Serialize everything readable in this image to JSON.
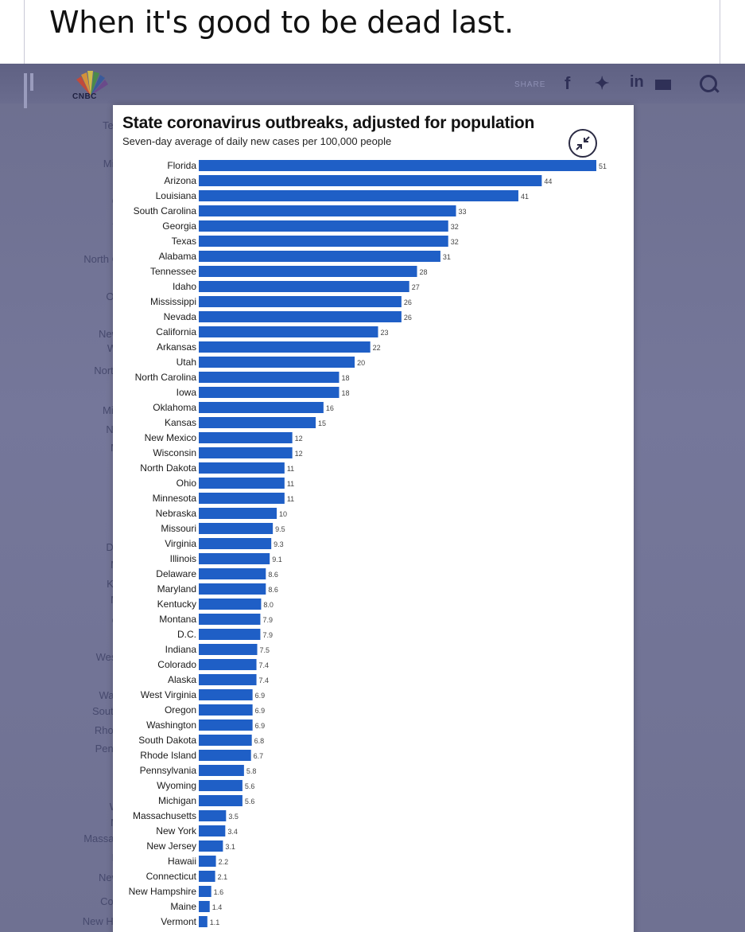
{
  "post": {
    "title": "When it's good to be dead last."
  },
  "header": {
    "logo_text": "CNBC",
    "share_label": "SHARE",
    "share_icons": [
      "facebook-icon",
      "twitter-icon",
      "linkedin-icon",
      "mail-icon",
      "search-icon"
    ],
    "in_text": "in"
  },
  "background_fragments": [
    "Ten",
    "Mis",
    "C",
    "A",
    "North C",
    "Ok",
    "New",
    "Wi",
    "North",
    "Min",
    "Ne",
    "M",
    "De",
    "M",
    "Ke",
    "M",
    "C",
    "West",
    "Was",
    "South",
    "Rhod",
    "Penn",
    "W",
    "M",
    "Massac",
    "N",
    "New",
    "Con",
    "New Ha"
  ],
  "colors": {
    "bar": "#1f5fc6",
    "background": "#6f7192",
    "card": "#ffffff"
  },
  "chart_data": {
    "type": "bar",
    "orientation": "horizontal",
    "title": "State coronavirus outbreaks, adjusted for population",
    "subtitle": "Seven-day average of daily new cases per 100,000 people",
    "categories": [
      "Florida",
      "Arizona",
      "Louisiana",
      "South Carolina",
      "Georgia",
      "Texas",
      "Alabama",
      "Tennessee",
      "Idaho",
      "Mississippi",
      "Nevada",
      "California",
      "Arkansas",
      "Utah",
      "North Carolina",
      "Iowa",
      "Oklahoma",
      "Kansas",
      "New Mexico",
      "Wisconsin",
      "North Dakota",
      "Ohio",
      "Minnesota",
      "Nebraska",
      "Missouri",
      "Virginia",
      "Illinois",
      "Delaware",
      "Maryland",
      "Kentucky",
      "Montana",
      "D.C.",
      "Indiana",
      "Colorado",
      "Alaska",
      "West Virginia",
      "Oregon",
      "Washington",
      "South Dakota",
      "Rhode Island",
      "Pennsylvania",
      "Wyoming",
      "Michigan",
      "Massachusetts",
      "New York",
      "New Jersey",
      "Hawaii",
      "Connecticut",
      "New Hampshire",
      "Maine",
      "Vermont"
    ],
    "values": [
      51,
      44,
      41,
      33,
      32,
      32,
      31,
      28,
      27,
      26,
      26,
      23,
      22,
      20,
      18,
      18,
      16,
      15,
      12,
      12,
      11,
      11,
      11,
      10,
      9.5,
      9.3,
      9.1,
      8.6,
      8.6,
      8.0,
      7.9,
      7.9,
      7.5,
      7.4,
      7.4,
      6.9,
      6.9,
      6.9,
      6.8,
      6.7,
      5.8,
      5.6,
      5.6,
      3.5,
      3.4,
      3.1,
      2.2,
      2.1,
      1.6,
      1.4,
      1.1
    ],
    "value_labels": [
      "51",
      "44",
      "41",
      "33",
      "32",
      "32",
      "31",
      "28",
      "27",
      "26",
      "26",
      "23",
      "22",
      "20",
      "18",
      "18",
      "16",
      "15",
      "12",
      "12",
      "11",
      "11",
      "11",
      "10",
      "9.5",
      "9.3",
      "9.1",
      "8.6",
      "8.6",
      "8.0",
      "7.9",
      "7.9",
      "7.5",
      "7.4",
      "7.4",
      "6.9",
      "6.9",
      "6.9",
      "6.8",
      "6.7",
      "5.8",
      "5.6",
      "5.6",
      "3.5",
      "3.4",
      "3.1",
      "2.2",
      "2.1",
      "1.6",
      "1.4",
      "1.1"
    ],
    "xlim": [
      0,
      51
    ],
    "grid": false,
    "legend": "none"
  }
}
